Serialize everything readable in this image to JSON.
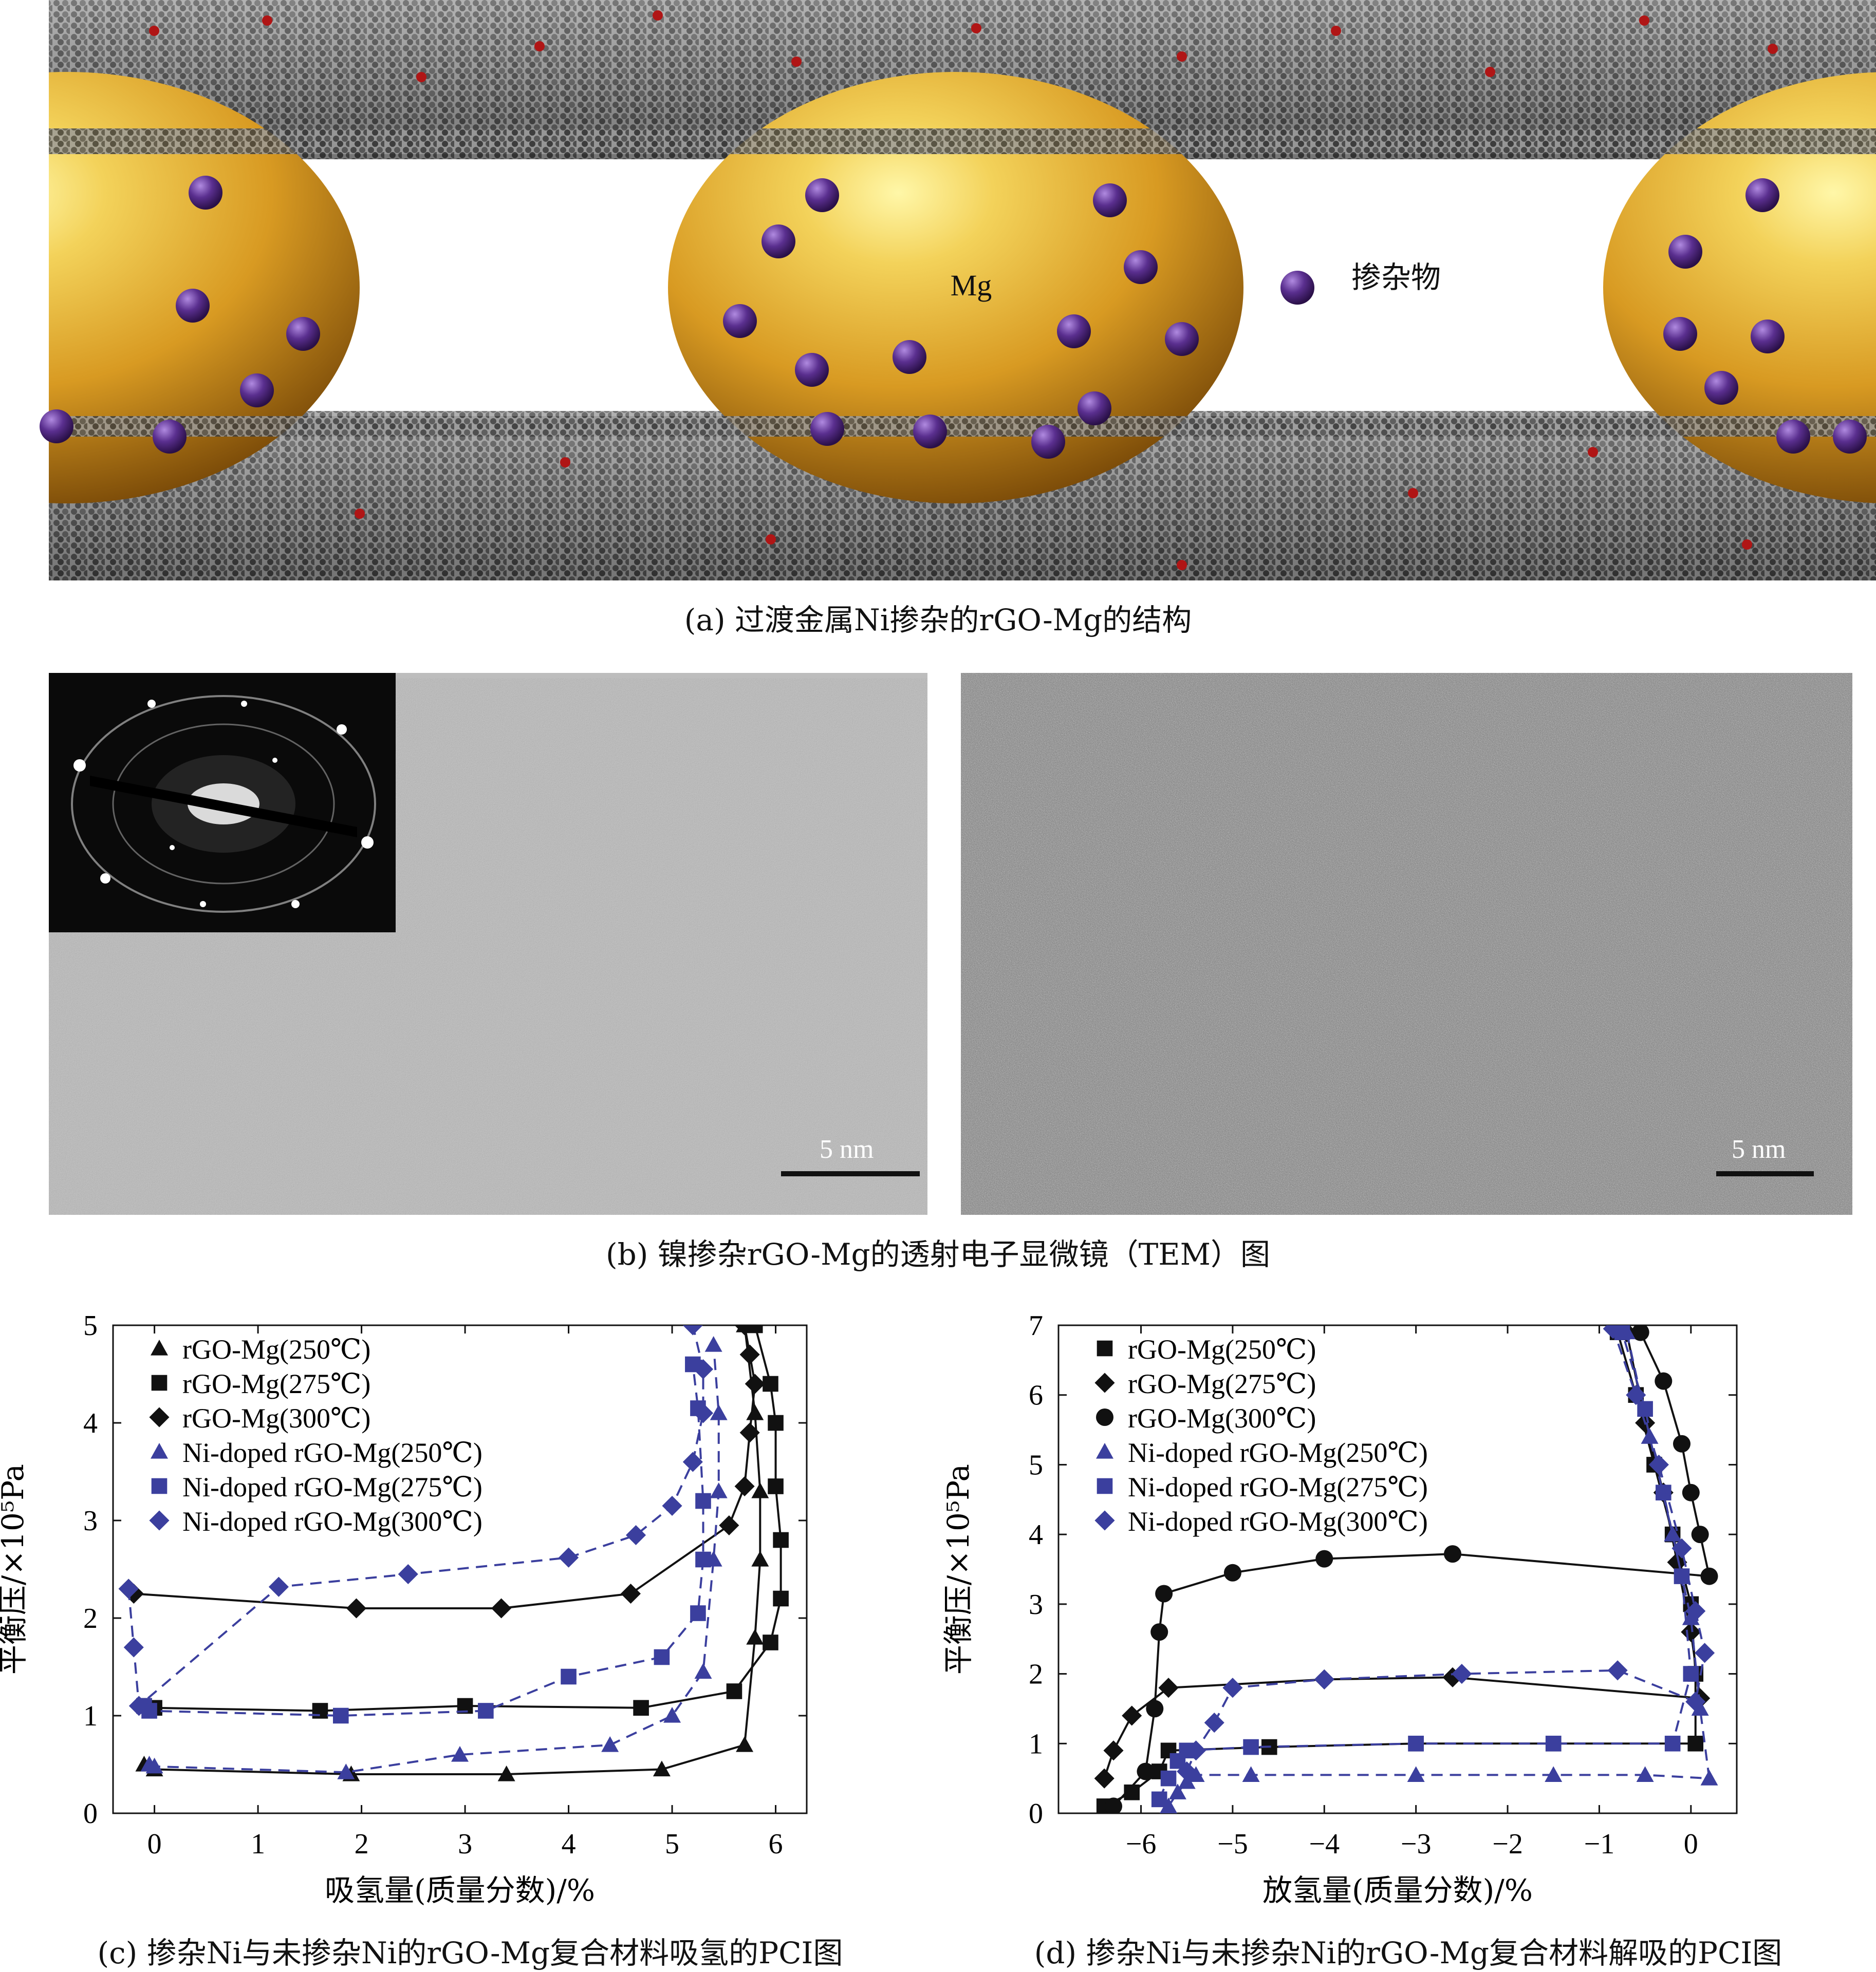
{
  "panel_a": {
    "mg_label": "Mg",
    "dopant_label": "掺杂物",
    "caption": "(a) 过渡金属Ni掺杂的rGO-Mg的结构",
    "colors": {
      "sphere": "#e6a62a",
      "dopant": "#5a2f8f",
      "graphene": "#555555",
      "oxygen": "#b01515"
    }
  },
  "panel_b": {
    "caption": "(b) 镍掺杂rGO-Mg的透射电子显微镜（TEM）图",
    "scale_left": "5 nm",
    "scale_right": "5 nm"
  },
  "caption_c": "(c) 掺杂Ni与未掺杂Ni的rGO-Mg复合材料吸氢的PCI图",
  "caption_d": "(d) 掺杂Ni与未掺杂Ni的rGO-Mg复合材料解吸的PCI图",
  "chart_data": [
    {
      "id": "c",
      "type": "line",
      "xlabel": "吸氢量(质量分数)/%",
      "ylabel": "平衡压/×10⁵Pa",
      "xlim": [
        -0.4,
        6.3
      ],
      "ylim": [
        0,
        5
      ],
      "xticks": [
        0,
        1,
        2,
        3,
        4,
        5,
        6
      ],
      "yticks": [
        0,
        1,
        2,
        3,
        4,
        5
      ],
      "legend_position": "top-left",
      "series": [
        {
          "name": "rGO-Mg(250℃)",
          "marker": "triangle",
          "color": "#111111",
          "dash": false,
          "x": [
            -0.1,
            0.0,
            1.9,
            3.4,
            4.9,
            5.7,
            5.8,
            5.85,
            5.85,
            5.8,
            5.7
          ],
          "y": [
            0.5,
            0.45,
            0.4,
            0.4,
            0.45,
            0.7,
            1.8,
            2.6,
            3.3,
            4.1,
            5.0
          ]
        },
        {
          "name": "rGO-Mg(275℃)",
          "marker": "square",
          "color": "#111111",
          "dash": false,
          "x": [
            -0.1,
            0.0,
            1.6,
            3.0,
            4.7,
            5.6,
            5.95,
            6.05,
            6.05,
            6.0,
            6.0,
            5.95,
            5.8
          ],
          "y": [
            1.1,
            1.08,
            1.05,
            1.1,
            1.08,
            1.25,
            1.75,
            2.2,
            2.8,
            3.35,
            4.0,
            4.4,
            5.0
          ]
        },
        {
          "name": "rGO-Mg(300℃)",
          "marker": "diamond",
          "color": "#111111",
          "dash": false,
          "x": [
            -0.25,
            -0.2,
            1.95,
            3.35,
            4.6,
            5.55,
            5.7,
            5.75,
            5.8,
            5.75,
            5.7
          ],
          "y": [
            2.3,
            2.25,
            2.1,
            2.1,
            2.25,
            2.95,
            3.35,
            3.9,
            4.4,
            4.7,
            5.0
          ]
        },
        {
          "name": "Ni-doped rGO-Mg(250℃)",
          "marker": "triangle",
          "color": "#3b3f9e",
          "dash": true,
          "x": [
            -0.05,
            0.0,
            1.85,
            2.95,
            4.4,
            5.0,
            5.3,
            5.4,
            5.45,
            5.45,
            5.4
          ],
          "y": [
            0.5,
            0.48,
            0.42,
            0.6,
            0.7,
            1.0,
            1.45,
            2.6,
            3.3,
            4.1,
            4.8
          ]
        },
        {
          "name": "Ni-doped rGO-Mg(275℃)",
          "marker": "square",
          "color": "#3b3f9e",
          "dash": true,
          "x": [
            -0.1,
            -0.05,
            1.8,
            3.2,
            4.0,
            4.9,
            5.25,
            5.3,
            5.3,
            5.25,
            5.2
          ],
          "y": [
            1.1,
            1.05,
            1.0,
            1.05,
            1.4,
            1.6,
            2.05,
            2.6,
            3.2,
            4.15,
            4.6
          ]
        },
        {
          "name": "Ni-doped rGO-Mg(300℃)",
          "marker": "diamond",
          "color": "#3b3f9e",
          "dash": true,
          "x": [
            -0.25,
            -0.2,
            -0.15,
            1.2,
            2.45,
            4.0,
            4.65,
            5.0,
            5.2,
            5.3,
            5.3,
            5.2
          ],
          "y": [
            2.3,
            1.7,
            1.1,
            2.32,
            2.45,
            2.62,
            2.85,
            3.15,
            3.6,
            4.1,
            4.55,
            5.0
          ]
        }
      ]
    },
    {
      "id": "d",
      "type": "line",
      "xlabel": "放氢量(质量分数)/%",
      "ylabel": "平衡压/×10⁵Pa",
      "xlim": [
        -6.9,
        0.5
      ],
      "ylim": [
        0,
        7
      ],
      "xticks": [
        -6,
        -5,
        -4,
        -3,
        -2,
        -1,
        0
      ],
      "yticks": [
        0,
        1,
        2,
        3,
        4,
        5,
        6,
        7
      ],
      "legend_position": "top-left",
      "series": [
        {
          "name": "rGO-Mg(250℃)",
          "marker": "square",
          "color": "#111111",
          "dash": false,
          "x": [
            -6.4,
            -6.1,
            -5.8,
            -5.7,
            -4.6,
            -3.0,
            -1.5,
            0.05,
            0.05,
            0.0,
            -0.2,
            -0.4,
            -0.6,
            -0.8
          ],
          "y": [
            0.1,
            0.3,
            0.6,
            0.9,
            0.95,
            1.0,
            1.0,
            1.0,
            2.0,
            3.0,
            4.0,
            5.0,
            6.0,
            6.9
          ]
        },
        {
          "name": "rGO-Mg(275℃)",
          "marker": "diamond",
          "color": "#111111",
          "dash": false,
          "x": [
            -6.4,
            -6.3,
            -6.1,
            -5.7,
            -4.0,
            -2.6,
            0.1,
            0.0,
            -0.15,
            -0.3,
            -0.5,
            -0.7
          ],
          "y": [
            0.5,
            0.9,
            1.4,
            1.8,
            1.92,
            1.95,
            1.65,
            2.6,
            3.6,
            4.6,
            5.6,
            6.9
          ]
        },
        {
          "name": "rGO-Mg(300℃)",
          "marker": "circle",
          "color": "#111111",
          "dash": false,
          "x": [
            -6.3,
            -5.95,
            -5.85,
            -5.8,
            -5.75,
            -5.0,
            -4.0,
            -2.6,
            0.2,
            0.1,
            0.0,
            -0.1,
            -0.3,
            -0.55
          ],
          "y": [
            0.1,
            0.6,
            1.5,
            2.6,
            3.15,
            3.45,
            3.65,
            3.72,
            3.4,
            4.0,
            4.6,
            5.3,
            6.2,
            6.9
          ]
        },
        {
          "name": "Ni-doped rGO-Mg(250℃)",
          "marker": "triangle",
          "color": "#3b3f9e",
          "dash": true,
          "x": [
            -5.7,
            -5.6,
            -5.5,
            -5.4,
            -4.8,
            -3.0,
            -1.5,
            -0.5,
            0.2,
            0.1,
            0.0,
            -0.2,
            -0.45,
            -0.7
          ],
          "y": [
            0.1,
            0.3,
            0.45,
            0.55,
            0.55,
            0.55,
            0.55,
            0.55,
            0.5,
            1.5,
            2.8,
            4.0,
            5.4,
            6.9
          ]
        },
        {
          "name": "Ni-doped rGO-Mg(275℃)",
          "marker": "square",
          "color": "#3b3f9e",
          "dash": true,
          "x": [
            -5.8,
            -5.7,
            -5.6,
            -5.5,
            -4.8,
            -3.0,
            -1.5,
            -0.2,
            0.0,
            -0.1,
            -0.3,
            -0.5,
            -0.75
          ],
          "y": [
            0.2,
            0.5,
            0.75,
            0.9,
            0.95,
            1.0,
            1.0,
            1.0,
            2.0,
            3.4,
            4.6,
            5.8,
            6.9
          ]
        },
        {
          "name": "Ni-doped rGO-Mg(300℃)",
          "marker": "diamond",
          "color": "#3b3f9e",
          "dash": true,
          "x": [
            -5.5,
            -5.4,
            -5.2,
            -5.0,
            -4.0,
            -2.5,
            -0.8,
            0.05,
            0.15,
            0.05,
            -0.1,
            -0.35,
            -0.6,
            -0.85
          ],
          "y": [
            0.6,
            0.9,
            1.3,
            1.8,
            1.92,
            2.0,
            2.05,
            1.6,
            2.3,
            2.9,
            3.8,
            5.0,
            6.0,
            6.95
          ]
        }
      ]
    }
  ]
}
